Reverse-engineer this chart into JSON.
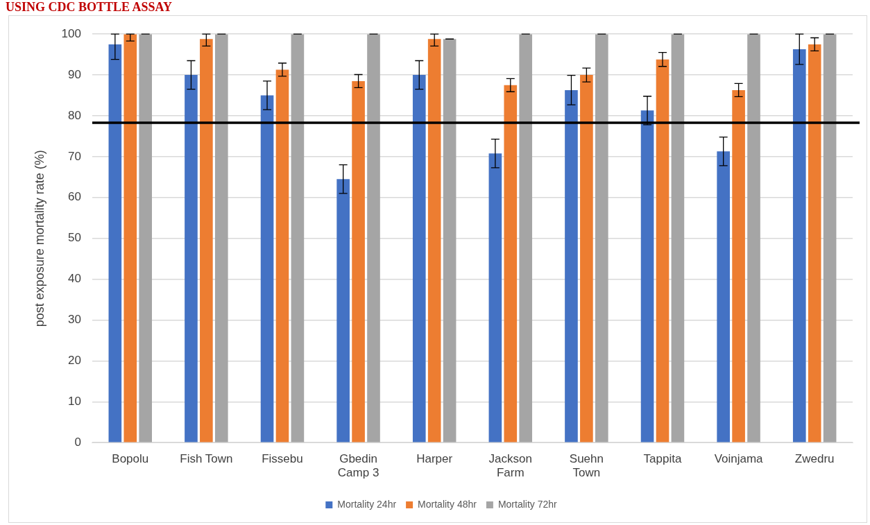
{
  "chart_data": {
    "type": "bar",
    "title": "USING CDC BOTTLE ASSAY",
    "ylabel": "post exposure mortality rate (%)",
    "categories": [
      "Bopolu",
      "Fish Town",
      "Fissebu",
      "Gbedin Camp 3",
      "Harper",
      "Jackson Farm",
      "Suehn Town",
      "Tappita",
      "Voinjama",
      "Zwedru"
    ],
    "series": [
      {
        "name": "Mortality 24hr",
        "color": "#4472c4",
        "values": [
          97.5,
          90,
          85,
          64.5,
          90,
          70.8,
          86.3,
          81.3,
          71.3,
          96.3
        ],
        "errors": [
          [
            93.8,
            100
          ],
          3.5,
          3.5,
          3.5,
          3.5,
          3.5,
          3.6,
          3.5,
          3.5,
          [
            92.6,
            100
          ]
        ]
      },
      {
        "name": "Mortality 48hr",
        "color": "#ed7d31",
        "values": [
          100,
          98.8,
          91.3,
          88.5,
          98.8,
          87.5,
          90,
          93.8,
          86.3,
          97.5
        ],
        "errors": [
          [
            98.3,
            100
          ],
          [
            97.1,
            100
          ],
          1.6,
          1.6,
          [
            97.1,
            100
          ],
          1.6,
          1.7,
          1.7,
          1.6,
          1.6
        ]
      },
      {
        "name": "Mortality 72hr",
        "color": "#a5a5a5",
        "values": [
          100,
          100,
          100,
          100,
          98.8,
          100,
          100,
          100,
          100,
          100
        ],
        "errors": [
          0,
          0,
          0,
          0,
          0,
          0,
          0,
          0,
          0,
          0
        ]
      }
    ],
    "ylim": [
      0,
      100
    ],
    "yticks": [
      0,
      10,
      20,
      30,
      40,
      50,
      60,
      70,
      80,
      90,
      100
    ],
    "grid": "y",
    "legend": "bottom",
    "ref_lines": [
      {
        "axis": "y",
        "value": 78.3,
        "color": "#000000"
      }
    ]
  }
}
